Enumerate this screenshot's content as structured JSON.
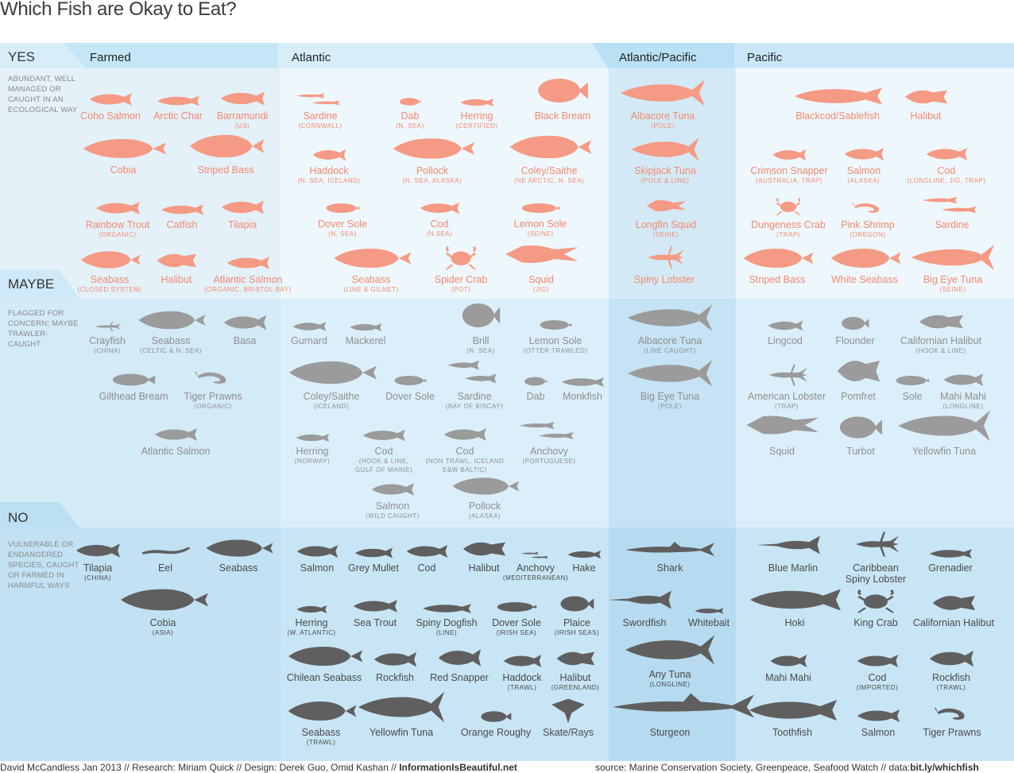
{
  "title": "Which Fish are Okay to Eat?",
  "columns": [
    "Farmed",
    "Atlantic",
    "Atlantic/Pacific",
    "Pacific"
  ],
  "rows": {
    "yes": {
      "label": "YES",
      "desc": "ABUNDANT, WELL MANAGED OR CAUGHT IN AN ECOLOGICAL WAY"
    },
    "maybe": {
      "label": "MAYBE",
      "desc": "FLAGGED FOR CONCERN; MAYBE TRAWLER-CAUGHT"
    },
    "no": {
      "label": "NO",
      "desc": "VULNERABLE OR ENDANGERED SPECIES, CAUGHT OR FARMED IN HARMFUL WAYS"
    }
  },
  "colors": {
    "yes_fish": "#f59a84",
    "maybe_fish": "#9b9b9b",
    "no_fish": "#5f5f5f",
    "header": "#c5e6f7"
  },
  "fish": [
    {
      "row": "yes",
      "name": "Coho Salmon",
      "note": "",
      "icon": "salmon-icon"
    },
    {
      "row": "yes",
      "name": "Arctic Char",
      "note": "",
      "icon": "char-icon"
    },
    {
      "row": "yes",
      "name": "Barramundi",
      "note": "(US)",
      "icon": "barramundi-icon"
    },
    {
      "row": "yes",
      "name": "Cobia",
      "note": "",
      "icon": "cobia-icon"
    },
    {
      "row": "yes",
      "name": "Striped Bass",
      "note": "",
      "icon": "bass-icon"
    },
    {
      "row": "yes",
      "name": "Rainbow Trout",
      "note": "(ORGANIC)",
      "icon": "trout-icon"
    },
    {
      "row": "yes",
      "name": "Catfish",
      "note": "",
      "icon": "catfish-icon"
    },
    {
      "row": "yes",
      "name": "Tilapia",
      "note": "",
      "icon": "tilapia-icon"
    },
    {
      "row": "yes",
      "name": "Seabass",
      "note": "(CLOSED SYSTEM)",
      "icon": "seabass-icon"
    },
    {
      "row": "yes",
      "name": "Halibut",
      "note": "",
      "icon": "halibut-icon"
    },
    {
      "row": "yes",
      "name": "Atlantic Salmon",
      "note": "(ORGANIC, BRISTOL BAY)",
      "icon": "salmon-icon"
    },
    {
      "row": "yes",
      "name": "Sardine",
      "note": "(CORNWALL)",
      "icon": "sardine-icon"
    },
    {
      "row": "yes",
      "name": "Dab",
      "note": "(N. SEA)",
      "icon": "dab-icon"
    },
    {
      "row": "yes",
      "name": "Herring",
      "note": "(CERTIFIED)",
      "icon": "herring-icon"
    },
    {
      "row": "yes",
      "name": "Black Bream",
      "note": "",
      "icon": "bream-icon"
    },
    {
      "row": "yes",
      "name": "Haddock",
      "note": "(N. SEA, ICELAND)",
      "icon": "haddock-icon"
    },
    {
      "row": "yes",
      "name": "Pollock",
      "note": "(N. SEA, ALASKA)",
      "icon": "pollock-icon"
    },
    {
      "row": "yes",
      "name": "Coley/Saithe",
      "note": "(NE ARCTIC, N. SEA)",
      "icon": "coley-icon"
    },
    {
      "row": "yes",
      "name": "Dover Sole",
      "note": "(N. SEA)",
      "icon": "sole-icon"
    },
    {
      "row": "yes",
      "name": "Cod",
      "note": "(N.SEA)",
      "icon": "cod-icon"
    },
    {
      "row": "yes",
      "name": "Lemon Sole",
      "note": "(SEINE)",
      "icon": "sole-icon"
    },
    {
      "row": "yes",
      "name": "Seabass",
      "note": "(LINE & GILNET)",
      "icon": "seabass-icon"
    },
    {
      "row": "yes",
      "name": "Spider Crab",
      "note": "(POT)",
      "icon": "crab-icon"
    },
    {
      "row": "yes",
      "name": "Squid",
      "note": "(JIG)",
      "icon": "squid-icon"
    },
    {
      "row": "yes",
      "name": "Albacore Tuna",
      "note": "(POLE)",
      "icon": "tuna-icon"
    },
    {
      "row": "yes",
      "name": "Skipjack Tuna",
      "note": "(POLE & LINE)",
      "icon": "tuna-icon"
    },
    {
      "row": "yes",
      "name": "Longfin Squid",
      "note": "(SEINE)",
      "icon": "squid-icon"
    },
    {
      "row": "yes",
      "name": "Spiny Lobster",
      "note": "",
      "icon": "lobster-icon"
    },
    {
      "row": "yes",
      "name": "Blackcod/Sablefish",
      "note": "",
      "icon": "sablefish-icon"
    },
    {
      "row": "yes",
      "name": "Halibut",
      "note": "",
      "icon": "halibut-icon"
    },
    {
      "row": "yes",
      "name": "Crimson Snapper",
      "note": "(AUSTRALIA, TRAP)",
      "icon": "snapper-icon"
    },
    {
      "row": "yes",
      "name": "Salmon",
      "note": "(ALASKA)",
      "icon": "salmon-icon"
    },
    {
      "row": "yes",
      "name": "Cod",
      "note": "(LONGLINE, JIG, TRAP)",
      "icon": "cod-icon"
    },
    {
      "row": "yes",
      "name": "Dungeness Crab",
      "note": "(TRAP)",
      "icon": "crab-icon"
    },
    {
      "row": "yes",
      "name": "Pink Shrimp",
      "note": "(OREGON)",
      "icon": "shrimp-icon"
    },
    {
      "row": "yes",
      "name": "Sardine",
      "note": "",
      "icon": "sardine-icon"
    },
    {
      "row": "yes",
      "name": "Striped Bass",
      "note": "",
      "icon": "bass-icon"
    },
    {
      "row": "yes",
      "name": "White Seabass",
      "note": "",
      "icon": "seabass-icon"
    },
    {
      "row": "yes",
      "name": "Big Eye Tuna",
      "note": "(SEINE)",
      "icon": "tuna-icon"
    },
    {
      "row": "maybe",
      "name": "Crayfish",
      "note": "(CHINA)",
      "icon": "crayfish-icon"
    },
    {
      "row": "maybe",
      "name": "Seabass",
      "note": "(CELTIC & N. SEA)",
      "icon": "seabass-icon"
    },
    {
      "row": "maybe",
      "name": "Basa",
      "note": "",
      "icon": "basa-icon"
    },
    {
      "row": "maybe",
      "name": "Gilthead Bream",
      "note": "",
      "icon": "bream-icon"
    },
    {
      "row": "maybe",
      "name": "Tiger Prawns",
      "note": "(ORGANIC)",
      "icon": "prawn-icon"
    },
    {
      "row": "maybe",
      "name": "Atlantic Salmon",
      "note": "",
      "icon": "salmon-icon"
    },
    {
      "row": "maybe",
      "name": "Gurnard",
      "note": "",
      "icon": "gurnard-icon"
    },
    {
      "row": "maybe",
      "name": "Mackerel",
      "note": "",
      "icon": "mackerel-icon"
    },
    {
      "row": "maybe",
      "name": "Brill",
      "note": "(N. SEA)",
      "icon": "brill-icon"
    },
    {
      "row": "maybe",
      "name": "Lemon Sole",
      "note": "(OTTER TRAWLED)",
      "icon": "sole-icon"
    },
    {
      "row": "maybe",
      "name": "Coley/Saithe",
      "note": "(ICELAND)",
      "icon": "coley-icon"
    },
    {
      "row": "maybe",
      "name": "Dover Sole",
      "note": "",
      "icon": "sole-icon"
    },
    {
      "row": "maybe",
      "name": "Sardine",
      "note": "(BAY OF BISCAY)",
      "icon": "sardine-icon"
    },
    {
      "row": "maybe",
      "name": "Dab",
      "note": "",
      "icon": "dab-icon"
    },
    {
      "row": "maybe",
      "name": "Monkfish",
      "note": "",
      "icon": "monkfish-icon"
    },
    {
      "row": "maybe",
      "name": "Herring",
      "note": "(NORWAY)",
      "icon": "herring-icon"
    },
    {
      "row": "maybe",
      "name": "Cod",
      "note": "(HOOK & LINE,|GULF OF MAINE)",
      "icon": "cod-icon"
    },
    {
      "row": "maybe",
      "name": "Cod",
      "note": "(NON TRAWL, ICELAND|E&W BALTIC)",
      "icon": "cod-icon"
    },
    {
      "row": "maybe",
      "name": "Anchovy",
      "note": "(PORTUGUESE)",
      "icon": "anchovy-icon"
    },
    {
      "row": "maybe",
      "name": "Salmon",
      "note": "(WILD CAUGHT)",
      "icon": "salmon-icon"
    },
    {
      "row": "maybe",
      "name": "Pollock",
      "note": "(ALASKA)",
      "icon": "pollock-icon"
    },
    {
      "row": "maybe",
      "name": "Albacore Tuna",
      "note": "(LINE CAUGHT)",
      "icon": "tuna-icon"
    },
    {
      "row": "maybe",
      "name": "Big Eye Tuna",
      "note": "(POLE)",
      "icon": "tuna-icon"
    },
    {
      "row": "maybe",
      "name": "Lingcod",
      "note": "",
      "icon": "lingcod-icon"
    },
    {
      "row": "maybe",
      "name": "Flounder",
      "note": "",
      "icon": "flounder-icon"
    },
    {
      "row": "maybe",
      "name": "Californian Halibut",
      "note": "(HOOK & LINE)",
      "icon": "halibut-icon"
    },
    {
      "row": "maybe",
      "name": "American Lobster",
      "note": "(TRAP)",
      "icon": "lobster-icon"
    },
    {
      "row": "maybe",
      "name": "Pomfret",
      "note": "",
      "icon": "pomfret-icon"
    },
    {
      "row": "maybe",
      "name": "Sole",
      "note": "",
      "icon": "sole-icon"
    },
    {
      "row": "maybe",
      "name": "Mahi Mahi",
      "note": "(LONGLINE)",
      "icon": "mahimahi-icon"
    },
    {
      "row": "maybe",
      "name": "Squid",
      "note": "",
      "icon": "squid-icon"
    },
    {
      "row": "maybe",
      "name": "Turbot",
      "note": "",
      "icon": "turbot-icon"
    },
    {
      "row": "maybe",
      "name": "Yellowfin Tuna",
      "note": "",
      "icon": "tuna-icon"
    },
    {
      "row": "no",
      "name": "Tilapia",
      "note": "(CHINA)",
      "icon": "tilapia-icon"
    },
    {
      "row": "no",
      "name": "Eel",
      "note": "",
      "icon": "eel-icon"
    },
    {
      "row": "no",
      "name": "Seabass",
      "note": "",
      "icon": "seabass-icon"
    },
    {
      "row": "no",
      "name": "Cobia",
      "note": "(ASIA)",
      "icon": "cobia-icon"
    },
    {
      "row": "no",
      "name": "Salmon",
      "note": "",
      "icon": "salmon-icon"
    },
    {
      "row": "no",
      "name": "Grey Mullet",
      "note": "",
      "icon": "mullet-icon"
    },
    {
      "row": "no",
      "name": "Cod",
      "note": "",
      "icon": "cod-icon"
    },
    {
      "row": "no",
      "name": "Halibut",
      "note": "",
      "icon": "halibut-icon"
    },
    {
      "row": "no",
      "name": "Anchovy",
      "note": "(MEDITERRANEAN)",
      "icon": "anchovy-icon"
    },
    {
      "row": "no",
      "name": "Hake",
      "note": "",
      "icon": "hake-icon"
    },
    {
      "row": "no",
      "name": "Herring",
      "note": "(W. ATLANTIC)",
      "icon": "herring-icon"
    },
    {
      "row": "no",
      "name": "Sea Trout",
      "note": "",
      "icon": "trout-icon"
    },
    {
      "row": "no",
      "name": "Spiny Dogfish",
      "note": "(LINE)",
      "icon": "dogfish-icon"
    },
    {
      "row": "no",
      "name": "Dover Sole",
      "note": "(IRISH SEA)",
      "icon": "sole-icon"
    },
    {
      "row": "no",
      "name": "Plaice",
      "note": "(IRISH SEAS)",
      "icon": "plaice-icon"
    },
    {
      "row": "no",
      "name": "Chilean Seabass",
      "note": "",
      "icon": "seabass-icon"
    },
    {
      "row": "no",
      "name": "Rockfish",
      "note": "",
      "icon": "rockfish-icon"
    },
    {
      "row": "no",
      "name": "Red Snapper",
      "note": "",
      "icon": "snapper-icon"
    },
    {
      "row": "no",
      "name": "Haddock",
      "note": "(TRAWL)",
      "icon": "haddock-icon"
    },
    {
      "row": "no",
      "name": "Halibut",
      "note": "(GREENLAND)",
      "icon": "halibut-icon"
    },
    {
      "row": "no",
      "name": "Seabass",
      "note": "(TRAWL)",
      "icon": "seabass-icon"
    },
    {
      "row": "no",
      "name": "Yellowfin Tuna",
      "note": "",
      "icon": "tuna-icon"
    },
    {
      "row": "no",
      "name": "Orange Roughy",
      "note": "",
      "icon": "roughy-icon"
    },
    {
      "row": "no",
      "name": "Skate/Rays",
      "note": "",
      "icon": "ray-icon"
    },
    {
      "row": "no",
      "name": "Shark",
      "note": "",
      "icon": "shark-icon"
    },
    {
      "row": "no",
      "name": "Swordfish",
      "note": "",
      "icon": "swordfish-icon"
    },
    {
      "row": "no",
      "name": "Whitebait",
      "note": "",
      "icon": "whitebait-icon"
    },
    {
      "row": "no",
      "name": "Any Tuna",
      "note": "(LONGLINE)",
      "icon": "tuna-icon"
    },
    {
      "row": "no",
      "name": "Sturgeon",
      "note": "",
      "icon": "sturgeon-icon"
    },
    {
      "row": "no",
      "name": "Blue Marlin",
      "note": "",
      "icon": "marlin-icon"
    },
    {
      "row": "no",
      "name": "Caribbean|Spiny Lobster",
      "note": "",
      "icon": "lobster-icon"
    },
    {
      "row": "no",
      "name": "Grenadier",
      "note": "",
      "icon": "grenadier-icon"
    },
    {
      "row": "no",
      "name": "Hoki",
      "note": "",
      "icon": "hoki-icon"
    },
    {
      "row": "no",
      "name": "King Crab",
      "note": "",
      "icon": "crab-icon"
    },
    {
      "row": "no",
      "name": "Californian Halibut",
      "note": "",
      "icon": "halibut-icon"
    },
    {
      "row": "no",
      "name": "Mahi Mahi",
      "note": "",
      "icon": "mahimahi-icon"
    },
    {
      "row": "no",
      "name": "Cod",
      "note": "(IMPORTED)",
      "icon": "cod-icon"
    },
    {
      "row": "no",
      "name": "Rockfish",
      "note": "(TRAWL)",
      "icon": "rockfish-icon"
    },
    {
      "row": "no",
      "name": "Toothfish",
      "note": "",
      "icon": "toothfish-icon"
    },
    {
      "row": "no",
      "name": "Salmon",
      "note": "",
      "icon": "salmon-icon"
    },
    {
      "row": "no",
      "name": "Tiger Prawns",
      "note": "",
      "icon": "prawn-icon"
    }
  ],
  "footer": {
    "credits": "David McCandless Jan 2013 // Research: Miriam Quick // Design: Derek Guo, Omid Kashan  // ",
    "site": "InformationIsBeautiful.net",
    "source": "source: Marine Conservation Society, Greenpeace, Seafood Watch // data:",
    "link": "bit.ly/whichfish"
  }
}
